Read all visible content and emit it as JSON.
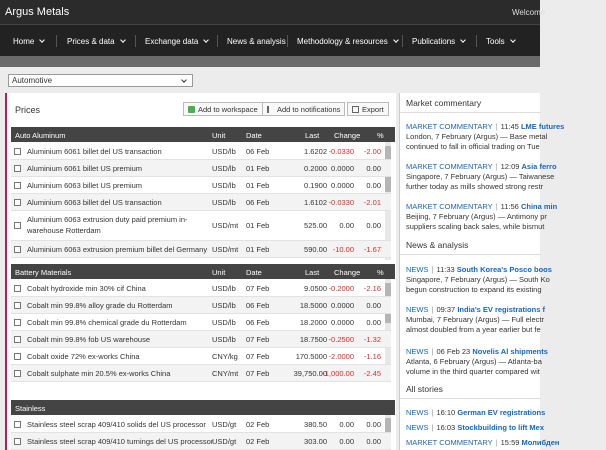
{
  "header": {
    "logo": "Argus Metals",
    "welcome": "Welcome"
  },
  "nav": [
    {
      "label": "Home"
    },
    {
      "label": "Prices & data"
    },
    {
      "label": "Exchange data"
    },
    {
      "label": "News & analysis"
    },
    {
      "label": "Methodology & resources"
    },
    {
      "label": "Publications"
    },
    {
      "label": "Tools"
    }
  ],
  "filter": {
    "selected": "Automotive"
  },
  "prices": {
    "title": "Prices",
    "buttons": {
      "workspace": "Add to workspace",
      "notifications": "Add to notifications",
      "export": "Export"
    },
    "columns": {
      "unit": "Unit",
      "date": "Date",
      "last": "Last",
      "change": "Change",
      "pct": "%"
    },
    "sections": [
      {
        "name": "Auto Aluminum",
        "rows": [
          {
            "name": "Aluminium 6061 billet del US transaction",
            "unit": "USD/lb",
            "date": "06 Feb",
            "last": "1.6202",
            "change": "-0.0330",
            "pct": "-2.00"
          },
          {
            "name": "Aluminium 6061 billet US premium",
            "unit": "USD/lb",
            "date": "01 Feb",
            "last": "0.2000",
            "change": "0.0000",
            "pct": "0.00"
          },
          {
            "name": "Aluminium 6063 billet US premium",
            "unit": "USD/lb",
            "date": "01 Feb",
            "last": "0.1900",
            "change": "0.0000",
            "pct": "0.00"
          },
          {
            "name": "Aluminium 6063 billet del US transaction",
            "unit": "USD/lb",
            "date": "06 Feb",
            "last": "1.6102",
            "change": "-0.0330",
            "pct": "-2.01"
          },
          {
            "name": "Aluminium 6063 extrusion duty paid premium in-",
            "name2": "warehouse Rotterdam",
            "unit": "USD/mt",
            "date": "01 Feb",
            "last": "525.00",
            "change": "0.00",
            "pct": "0.00"
          },
          {
            "name": "Aluminium 6063 extrusion premium billet del Germany",
            "unit": "USD/mt",
            "date": "01 Feb",
            "last": "590.00",
            "change": "-10.00",
            "pct": "-1.67"
          }
        ]
      },
      {
        "name": "Battery Materials",
        "rows": [
          {
            "name": "Cobalt hydroxide min 30% cif China",
            "unit": "USD/lb",
            "date": "07 Feb",
            "last": "9.0500",
            "change": "-0.2000",
            "pct": "-2.16"
          },
          {
            "name": "Cobalt min 99.8% alloy grade du Rotterdam",
            "unit": "USD/lb",
            "date": "06 Feb",
            "last": "18.5000",
            "change": "0.0000",
            "pct": "0.00"
          },
          {
            "name": "Cobalt min 99.8% chemical grade du Rotterdam",
            "unit": "USD/lb",
            "date": "06 Feb",
            "last": "18.2000",
            "change": "0.0000",
            "pct": "0.00"
          },
          {
            "name": "Cobalt min 99.8% fob US warehouse",
            "unit": "USD/lb",
            "date": "07 Feb",
            "last": "18.7500",
            "change": "-0.2500",
            "pct": "-1.32"
          },
          {
            "name": "Cobalt oxide 72% ex-works China",
            "unit": "CNY/kg",
            "date": "07 Feb",
            "last": "170.5000",
            "change": "-2.0000",
            "pct": "-1.16"
          },
          {
            "name": "Cobalt sulphate min 20.5% ex-works China",
            "unit": "CNY/mt",
            "date": "07 Feb",
            "last": "39,750.00",
            "change": "-1,000.00",
            "pct": "-2.45"
          }
        ]
      },
      {
        "name": "Stainless",
        "rows": [
          {
            "name": "Stainless steel scrap 409/410 solids del US processor",
            "unit": "USD/gt",
            "date": "02 Feb",
            "last": "380.50",
            "change": "0.00",
            "pct": "0.00"
          },
          {
            "name": "Stainless steel scrap 409/410 turnings del US processor",
            "unit": "USD/gt",
            "date": "02 Feb",
            "last": "303.00",
            "change": "0.00",
            "pct": "0.00"
          }
        ]
      }
    ]
  },
  "commentary": {
    "title": "Market commentary",
    "stories": [
      {
        "tag": "MARKET COMMENTARY",
        "time": "11:45",
        "headline": "LME futures",
        "line1": "London, 7 February (Argus) — Base metal",
        "line2": "continued to fall in official trading on Tue"
      },
      {
        "tag": "MARKET COMMENTARY",
        "time": "12:09",
        "headline": "Asia ferro",
        "line1": "Singapore, 7 February (Argus) — Taiwanese",
        "line2": "further today as mills showed strong restr"
      },
      {
        "tag": "MARKET COMMENTARY",
        "time": "11:56",
        "headline": "China min",
        "line1": "Beijing, 7 February (Argus) — Antimony pr",
        "line2": "suppliers scaling back sales, while bismut"
      }
    ]
  },
  "news": {
    "title": "News & analysis",
    "stories": [
      {
        "tag": "NEWS",
        "time": "11:33",
        "headline": "South Korea's Posco boos",
        "line1": "Singapore, 7 February (Argus) — South Ko",
        "line2": "begun construction to expand its existing"
      },
      {
        "tag": "NEWS",
        "time": "09:37",
        "headline": "India's EV registrations f",
        "line1": "Mumbai, 7 February (Argus) — Full electr",
        "line2": "almost doubled from a year earlier but fe"
      },
      {
        "tag": "NEWS",
        "time": "06 Feb 23",
        "headline": "Novelis Al shipments",
        "line1": "Atlanta, 6 February (Argus) — Atlanta-ba",
        "line2": "volume in the third quarter compared wit"
      }
    ]
  },
  "all_stories": {
    "title": "All stories",
    "stories": [
      {
        "tag": "NEWS",
        "time": "16:10",
        "headline": "German EV registrations"
      },
      {
        "tag": "NEWS",
        "time": "16:03",
        "headline": "Stockbuilding to lift Mex"
      },
      {
        "tag": "MARKET COMMENTARY",
        "time": "15:59",
        "headline": "Молибден"
      }
    ]
  }
}
